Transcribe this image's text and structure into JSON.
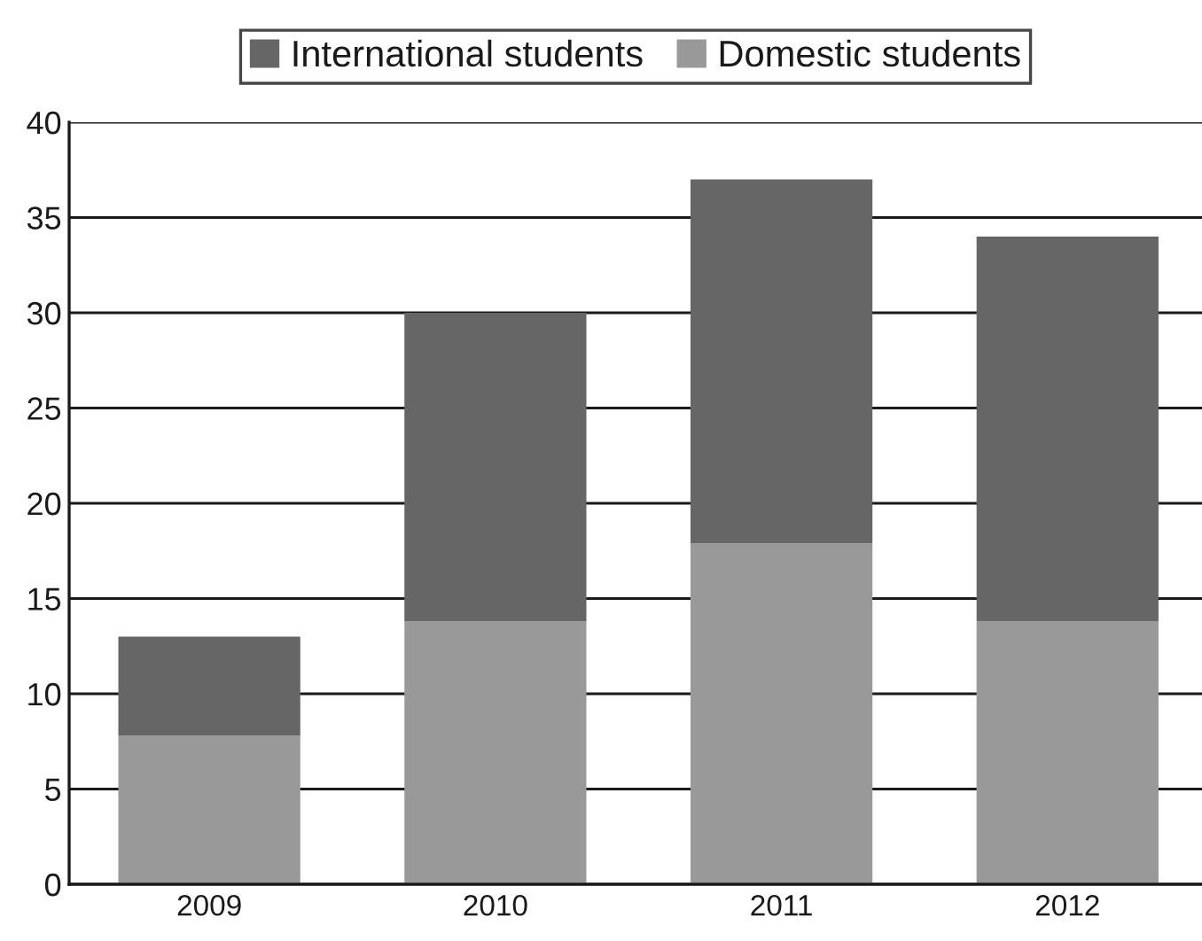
{
  "chart_data": {
    "type": "bar",
    "stacked": true,
    "categories": [
      "2009",
      "2010",
      "2011",
      "2012"
    ],
    "series": [
      {
        "name": "Domestic students",
        "color": "#999999",
        "values": [
          7.8,
          13.8,
          17.9,
          13.8
        ]
      },
      {
        "name": "International students",
        "color": "#666666",
        "values": [
          5.2,
          16.2,
          19.1,
          20.2
        ]
      }
    ],
    "ylim": [
      0,
      40
    ],
    "yticks": [
      0,
      5,
      10,
      15,
      20,
      25,
      30,
      35,
      40
    ],
    "grid": "y",
    "legend": "top"
  }
}
